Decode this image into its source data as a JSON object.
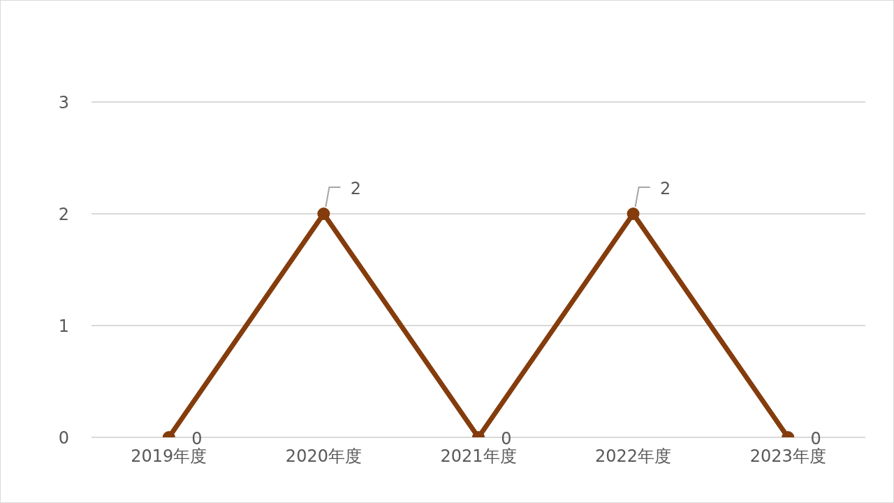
{
  "chart_data": {
    "type": "line",
    "categories": [
      "2019年度",
      "2020年度",
      "2021年度",
      "2022年度",
      "2023年度"
    ],
    "series": [
      {
        "color": "#843c0c",
        "values": [
          0,
          2,
          0,
          2,
          0
        ]
      }
    ],
    "ylim": [
      0,
      3
    ],
    "yticks": [
      0,
      1,
      2,
      3
    ],
    "grid": "y",
    "marker": "circle",
    "line_style": "solid",
    "data_labels": true,
    "legend": false
  }
}
